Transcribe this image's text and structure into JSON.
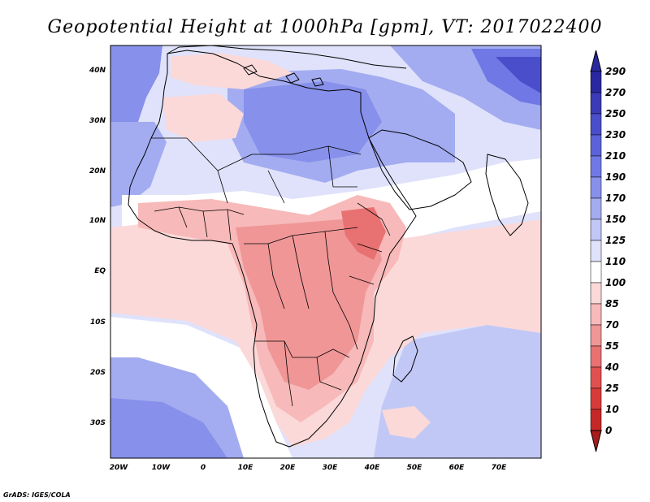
{
  "title": "Geopotential Height at 1000hPa [gpm], VT: 2017022400",
  "credit": "GrADS: IGES/COLA",
  "map": {
    "lat_labels": [
      "40N",
      "30N",
      "20N",
      "10N",
      "EQ",
      "10S",
      "20S",
      "30S"
    ],
    "lon_labels": [
      "20W",
      "10W",
      "0",
      "10E",
      "20E",
      "30E",
      "40E",
      "50E",
      "60E",
      "70E"
    ],
    "lat_values": [
      40,
      30,
      20,
      10,
      0,
      -10,
      -20,
      -30
    ],
    "lon_values": [
      -20,
      -10,
      0,
      10,
      20,
      30,
      40,
      50,
      60,
      70
    ],
    "lon_range": [
      -22,
      80
    ],
    "lat_range": [
      -37,
      46
    ]
  },
  "colorbar": {
    "labels": [
      "290",
      "270",
      "250",
      "230",
      "210",
      "190",
      "170",
      "150",
      "125",
      "110",
      "100",
      "85",
      "70",
      "55",
      "40",
      "25",
      "10",
      "0"
    ],
    "colors_top_to_bottom": [
      "#2a28a0",
      "#3a3bb5",
      "#4a4ecb",
      "#5b62da",
      "#6f78e4",
      "#8790ea",
      "#a3acf0",
      "#c2c8f5",
      "#dfe2fa",
      "#ffffff",
      "#fbd9d9",
      "#f7b9b9",
      "#f09696",
      "#e87171",
      "#e05050",
      "#d83a3a",
      "#c62828",
      "#a81c1c"
    ]
  }
}
